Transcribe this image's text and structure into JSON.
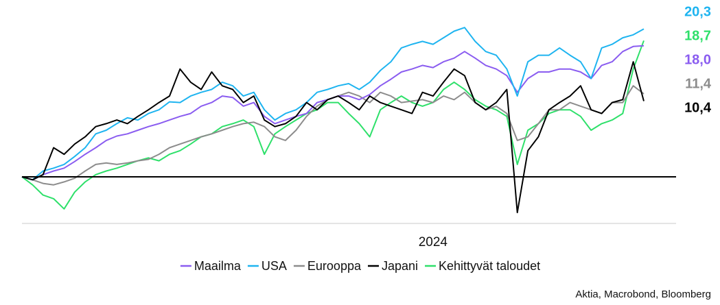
{
  "chart_data": {
    "type": "line",
    "categories": [
      null,
      null,
      null,
      null,
      null,
      null,
      null,
      null,
      null,
      null,
      null,
      null,
      null,
      null,
      null,
      null,
      null,
      null,
      null,
      null,
      null,
      null,
      null,
      null,
      null,
      null,
      null,
      null,
      null,
      null,
      null,
      null,
      null,
      null,
      null,
      null,
      null,
      null,
      null,
      "2024",
      null,
      null,
      null,
      null,
      null,
      null,
      null,
      null,
      null,
      null,
      null,
      null,
      null,
      null,
      null,
      null,
      null,
      null,
      null,
      null
    ],
    "ylim": [
      -6.4,
      22.4
    ],
    "reference_line": 0,
    "legend": "bottom",
    "source": "Aktia, Macrobond, Bloomberg",
    "series": [
      {
        "name": "Maailma",
        "color": "#8a5cf0",
        "last_label": "18,0",
        "values": [
          0,
          -0.4,
          0.3,
          0.8,
          1.2,
          2.1,
          3.1,
          4.0,
          5.0,
          5.6,
          5.9,
          6.4,
          6.9,
          7.3,
          7.8,
          8.3,
          8.7,
          9.7,
          10.2,
          11.1,
          10.9,
          9.7,
          10.2,
          8.3,
          7.3,
          7.8,
          8.3,
          8.7,
          10.2,
          10.6,
          11.1,
          11.1,
          10.6,
          11.3,
          12.5,
          13.4,
          14.4,
          14.8,
          15.3,
          15.0,
          15.8,
          16.3,
          17.2,
          16.3,
          15.3,
          14.8,
          13.9,
          11.6,
          13.5,
          14.4,
          14.4,
          14.8,
          14.8,
          14.4,
          13.5,
          15.3,
          15.8,
          17.2,
          17.9,
          18.0
        ]
      },
      {
        "name": "USA",
        "color": "#1eb4f0",
        "last_label": "20,3",
        "values": [
          0,
          -0.4,
          0.8,
          1.2,
          1.7,
          2.8,
          4.0,
          5.9,
          6.4,
          7.3,
          8.1,
          7.8,
          8.7,
          9.2,
          10.3,
          10.2,
          11.1,
          11.6,
          12.0,
          13.0,
          12.5,
          11.1,
          11.6,
          9.2,
          7.8,
          8.7,
          9.2,
          10.2,
          11.6,
          12.0,
          12.5,
          12.8,
          12.0,
          13.0,
          14.6,
          15.8,
          17.7,
          18.2,
          18.6,
          18.2,
          19.1,
          20.0,
          20.5,
          18.6,
          17.2,
          16.7,
          14.8,
          11.1,
          15.8,
          16.7,
          16.7,
          17.7,
          16.7,
          15.8,
          13.5,
          17.7,
          18.2,
          19.1,
          19.5,
          20.3
        ]
      },
      {
        "name": "Eurooppa",
        "color": "#8c8c8c",
        "last_label": "11,4",
        "values": [
          0,
          -0.4,
          -0.9,
          -1.1,
          -0.7,
          -0.2,
          0.8,
          1.7,
          1.9,
          1.7,
          1.9,
          2.2,
          2.4,
          3.1,
          4.0,
          4.5,
          5.0,
          5.5,
          5.9,
          6.4,
          6.9,
          7.3,
          7.5,
          6.9,
          5.5,
          5.0,
          6.4,
          8.3,
          9.7,
          10.6,
          11.1,
          11.6,
          11.1,
          10.2,
          11.6,
          11.1,
          10.2,
          10.4,
          10.6,
          10.2,
          11.1,
          10.6,
          11.6,
          10.2,
          9.2,
          9.7,
          8.7,
          5.0,
          5.5,
          7.3,
          9.2,
          9.2,
          10.2,
          9.7,
          9.2,
          8.7,
          10.2,
          10.2,
          12.5,
          11.4
        ]
      },
      {
        "name": "Japani",
        "color": "#000000",
        "last_label": "10,4",
        "values": [
          0,
          -0.4,
          0.3,
          4.0,
          3.1,
          4.5,
          5.5,
          6.9,
          7.3,
          7.8,
          7.3,
          8.3,
          9.2,
          10.2,
          11.1,
          14.8,
          13.0,
          12.0,
          14.4,
          12.5,
          12.0,
          10.2,
          11.1,
          7.8,
          6.9,
          7.3,
          8.3,
          10.2,
          9.2,
          10.6,
          11.1,
          10.2,
          9.2,
          11.1,
          10.2,
          9.7,
          9.2,
          8.7,
          11.6,
          11.1,
          13.0,
          14.8,
          13.9,
          10.2,
          9.2,
          10.2,
          12.0,
          -4.9,
          3.6,
          5.5,
          9.2,
          10.2,
          11.1,
          12.5,
          9.2,
          8.7,
          10.2,
          10.6,
          15.8,
          10.4
        ]
      },
      {
        "name": "Kehittyvät taloudet",
        "color": "#2ee06a",
        "last_label": "18,7",
        "values": [
          0,
          -1.1,
          -2.5,
          -3.0,
          -4.4,
          -2.1,
          -0.7,
          0.3,
          0.8,
          1.2,
          1.7,
          2.2,
          2.6,
          2.2,
          3.1,
          3.6,
          4.5,
          5.5,
          5.9,
          6.9,
          7.3,
          7.8,
          6.9,
          3.1,
          5.9,
          6.9,
          7.8,
          8.7,
          9.2,
          10.2,
          10.2,
          8.7,
          7.3,
          5.5,
          9.2,
          10.2,
          11.1,
          10.2,
          9.7,
          10.2,
          12.0,
          13.0,
          12.0,
          10.6,
          9.7,
          9.2,
          8.3,
          1.7,
          6.4,
          7.3,
          8.7,
          9.2,
          9.2,
          8.3,
          6.4,
          7.3,
          7.8,
          8.7,
          14.8,
          18.7
        ]
      }
    ]
  }
}
